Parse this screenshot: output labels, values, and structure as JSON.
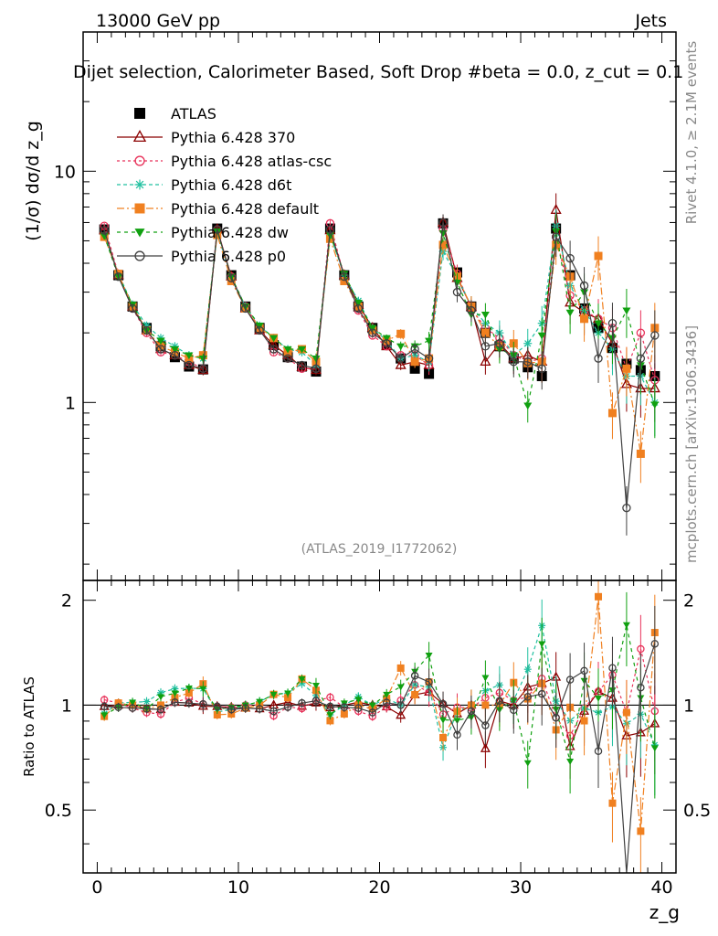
{
  "header": {
    "energy_label": "13000 GeV pp",
    "process_label": "Jets"
  },
  "side_labels": {
    "rivet": "Rivet 4.1.0, ≥ 2.1M events",
    "mcplots": "mcplots.cern.ch [arXiv:1306.3436]"
  },
  "chart_data": {
    "type": "scatter",
    "title": "Dijet selection, Calorimeter Based, Soft Drop #beta = 0.0, z_cut = 0.1",
    "ylabel": "(1/σ) dσ/d z_g",
    "ratio_ylabel": "Ratio to ATLAS",
    "xlabel": "z_g",
    "analysis_id": "(ATLAS_2019_I1772062)",
    "xlim": [
      -1,
      41
    ],
    "ylim": [
      0.17,
      40
    ],
    "ylog": true,
    "ratio_ylim": [
      0.33,
      2.28
    ],
    "x_ticks": [
      0,
      10,
      20,
      30,
      40
    ],
    "y_ticks": [
      1,
      10
    ],
    "ratio_ticks": [
      0.5,
      1,
      2
    ],
    "x": [
      0.5,
      1.5,
      2.5,
      3.5,
      4.5,
      5.5,
      6.5,
      7.5,
      8.5,
      9.5,
      10.5,
      11.5,
      12.5,
      13.5,
      14.5,
      15.5,
      16.5,
      17.5,
      18.5,
      19.5,
      20.5,
      21.5,
      22.5,
      23.5,
      24.5,
      25.5,
      26.5,
      27.5,
      28.5,
      29.5,
      30.5,
      31.5,
      32.5,
      33.5,
      34.5,
      35.5,
      36.5,
      37.5,
      38.5,
      39.5
    ],
    "series": [
      {
        "name": "ATLAS",
        "color": "#000000",
        "marker": "square",
        "dash": "",
        "values": [
          5.6,
          3.55,
          2.6,
          2.1,
          1.75,
          1.57,
          1.43,
          1.39,
          5.65,
          3.55,
          2.6,
          2.1,
          1.77,
          1.57,
          1.43,
          1.36,
          5.65,
          3.55,
          2.6,
          2.1,
          1.77,
          1.55,
          1.4,
          1.33,
          5.95,
          3.65,
          2.6,
          2.0,
          1.75,
          1.55,
          1.42,
          1.3,
          5.65,
          3.55,
          2.55,
          2.1,
          1.72,
          1.47,
          1.38,
          1.3
        ]
      },
      {
        "name": "Pythia 6.428 370",
        "color": "#8b0000",
        "marker": "triangle-open",
        "dash": "",
        "values": [
          5.55,
          3.55,
          2.6,
          2.05,
          1.7,
          1.6,
          1.45,
          1.38,
          5.6,
          3.5,
          2.55,
          2.05,
          1.77,
          1.6,
          1.42,
          1.38,
          5.55,
          3.55,
          2.65,
          2.1,
          1.75,
          1.45,
          1.5,
          1.45,
          6.0,
          3.45,
          2.6,
          1.5,
          1.8,
          1.55,
          1.6,
          1.5,
          6.8,
          2.7,
          2.45,
          2.3,
          1.8,
          1.2,
          1.15,
          1.15
        ]
      },
      {
        "name": "Pythia 6.428 atlas-csc",
        "color": "#e8325a",
        "marker": "circle-open",
        "dash": "3,3",
        "values": [
          5.8,
          3.6,
          2.55,
          2.0,
          1.65,
          1.6,
          1.5,
          1.4,
          5.6,
          3.5,
          2.6,
          2.1,
          1.65,
          1.55,
          1.4,
          1.4,
          5.95,
          3.5,
          2.5,
          1.95,
          1.75,
          1.6,
          1.6,
          1.45,
          5.6,
          3.6,
          2.55,
          2.1,
          1.9,
          1.6,
          1.5,
          1.55,
          5.2,
          2.9,
          2.5,
          2.3,
          2.1,
          1.4,
          2.0,
          1.25
        ]
      },
      {
        "name": "Pythia 6.428 d6t",
        "color": "#20c0a0",
        "marker": "asterisk",
        "dash": "4,3",
        "values": [
          5.3,
          3.6,
          2.65,
          2.15,
          1.9,
          1.75,
          1.6,
          1.55,
          5.4,
          3.45,
          2.6,
          2.15,
          1.9,
          1.7,
          1.65,
          1.45,
          5.3,
          3.55,
          2.75,
          2.1,
          1.85,
          1.55,
          1.6,
          1.5,
          4.5,
          3.5,
          2.6,
          2.2,
          2.0,
          1.6,
          1.8,
          2.2,
          5.8,
          3.2,
          2.5,
          2.0,
          1.7,
          1.3,
          1.3,
          1.0
        ]
      },
      {
        "name": "Pythia 6.428 default",
        "color": "#f08020",
        "marker": "square",
        "dash": "8,3,2,3",
        "values": [
          5.2,
          3.6,
          2.6,
          2.05,
          1.75,
          1.65,
          1.55,
          1.6,
          5.3,
          3.35,
          2.55,
          2.1,
          1.9,
          1.65,
          1.7,
          1.5,
          5.1,
          3.35,
          2.6,
          2.05,
          1.85,
          1.98,
          1.5,
          1.55,
          4.8,
          3.5,
          2.6,
          2.0,
          1.75,
          1.8,
          1.48,
          1.5,
          4.8,
          3.5,
          2.3,
          4.3,
          0.9,
          1.4,
          0.6,
          2.1
        ]
      },
      {
        "name": "Pythia 6.428 dw",
        "color": "#10a010",
        "marker": "triangle-down",
        "dash": "4,4",
        "values": [
          5.25,
          3.5,
          2.65,
          2.05,
          1.85,
          1.7,
          1.6,
          1.55,
          5.5,
          3.5,
          2.6,
          2.15,
          1.9,
          1.7,
          1.7,
          1.55,
          5.3,
          3.6,
          2.7,
          2.1,
          1.9,
          1.75,
          1.75,
          1.85,
          5.4,
          3.3,
          2.4,
          2.4,
          1.7,
          1.6,
          0.97,
          1.95,
          5.5,
          2.45,
          3.0,
          2.2,
          1.9,
          2.5,
          1.45,
          0.98
        ]
      },
      {
        "name": "Pythia 6.428 p0",
        "color": "#404040",
        "marker": "circle-open",
        "dash": "",
        "values": [
          5.55,
          3.5,
          2.55,
          2.05,
          1.7,
          1.6,
          1.45,
          1.4,
          5.6,
          3.45,
          2.55,
          2.05,
          1.7,
          1.55,
          1.45,
          1.4,
          5.6,
          3.5,
          2.55,
          2.0,
          1.8,
          1.55,
          1.7,
          1.55,
          6.0,
          3.0,
          2.5,
          1.75,
          1.8,
          1.5,
          1.5,
          1.4,
          5.2,
          4.2,
          3.2,
          1.55,
          2.2,
          0.35,
          1.55,
          1.95
        ]
      }
    ]
  }
}
